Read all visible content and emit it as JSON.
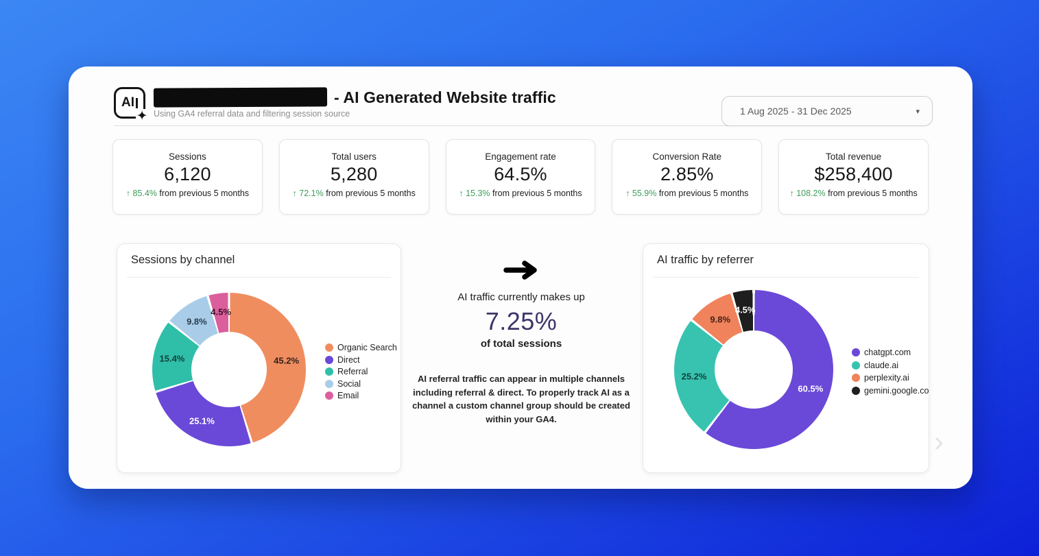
{
  "colors": {
    "background_gradient_start": "#3b87f4",
    "background_gradient_end": "#0d20d7",
    "positive_green": "#3f9d5b",
    "highlight_purple": "#3e3468"
  },
  "header": {
    "logo_text": "AI",
    "sparkle_icon": "✦",
    "title_suffix": "- AI Generated Website traffic",
    "subtitle": "Using GA4 referral data and filtering session source",
    "date_range": "1 Aug 2025 - 31 Dec 2025",
    "dropdown_icon": "▾"
  },
  "kpis": [
    {
      "label": "Sessions",
      "value": "6,120",
      "up_arrow": "↑",
      "change": "85.4%",
      "change_suffix": "from previous 5 months"
    },
    {
      "label": "Total users",
      "value": "5,280",
      "up_arrow": "↑",
      "change": "72.1%",
      "change_suffix": "from previous 5 months"
    },
    {
      "label": "Engagement rate",
      "value": "64.5%",
      "up_arrow": "↑",
      "change": "15.3%",
      "change_suffix": "from previous 5 months"
    },
    {
      "label": "Conversion Rate",
      "value": "2.85%",
      "up_arrow": "↑",
      "change": "55.9%",
      "change_suffix": "from previous 5 months"
    },
    {
      "label": "Total revenue",
      "value": "$258,400",
      "up_arrow": "↑",
      "change": "108.2%",
      "change_suffix": "from previous 5 months"
    }
  ],
  "center": {
    "line1": "AI traffic currently makes up",
    "highlight": "7.25%",
    "line2": "of total sessions",
    "note": "AI referral traffic can appear in multiple channels including referral & direct. To properly track AI as a channel a custom channel group should be created within your GA4."
  },
  "chart_data": [
    {
      "type": "pie",
      "donut": true,
      "title": "Sessions by channel",
      "labels": [
        "Organic Search",
        "Direct",
        "Referral",
        "Social",
        "Email"
      ],
      "values": [
        45.2,
        25.1,
        15.4,
        9.8,
        4.5
      ],
      "colors": [
        "#f08d5f",
        "#6a49d8",
        "#2fbfa9",
        "#a9cde8",
        "#dc5f9d"
      ],
      "label_colors": [
        "#32221c",
        "#ffffff",
        "#11423a",
        "#2a3c4e",
        "#3c1125"
      ],
      "legend_position": "right"
    },
    {
      "type": "pie",
      "donut": true,
      "title": "AI traffic by referrer",
      "labels": [
        "chatgpt.com",
        "claude.ai",
        "perplexity.ai",
        "gemini.google.co"
      ],
      "values": [
        60.5,
        25.2,
        9.8,
        4.5
      ],
      "colors": [
        "#6a49d8",
        "#38c3b1",
        "#f0825c",
        "#1e1e1e"
      ],
      "label_colors": [
        "#ffffff",
        "#0f423b",
        "#43231a",
        "#ffffff"
      ],
      "legend_position": "right"
    }
  ],
  "next_arrow_icon": "›"
}
